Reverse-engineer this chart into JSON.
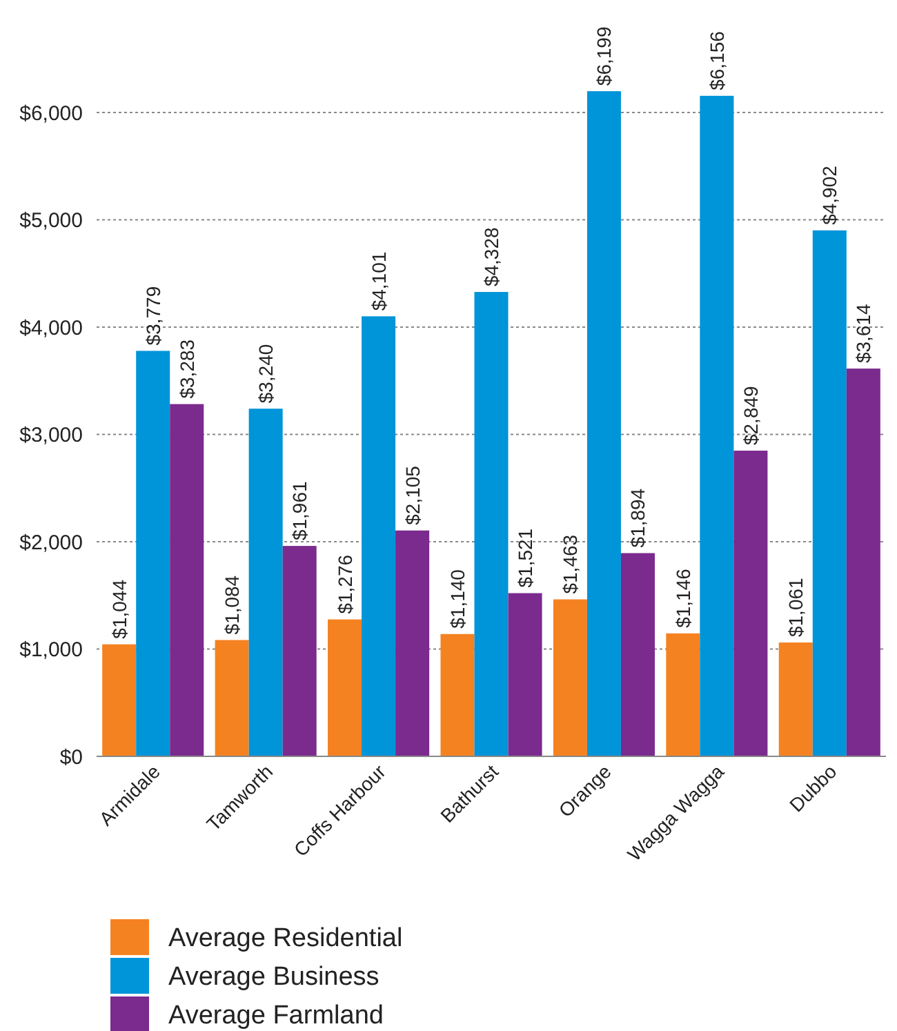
{
  "chart_data": {
    "type": "bar",
    "categories": [
      "Armidale",
      "Tamworth",
      "Coffs Harbour",
      "Bathurst",
      "Orange",
      "Wagga Wagga",
      "Dubbo"
    ],
    "series": [
      {
        "name": "Average Residential",
        "color": "#f58220",
        "values": [
          1044,
          1084,
          1276,
          1140,
          1463,
          1146,
          1061
        ],
        "value_labels": [
          "$1,044",
          "$1,084",
          "$1,276",
          "$1,140",
          "$1,463",
          "$1,146",
          "$1,061"
        ]
      },
      {
        "name": "Average Business",
        "color": "#0094d9",
        "values": [
          3779,
          3240,
          4101,
          4328,
          6199,
          6156,
          4902
        ],
        "value_labels": [
          "$3,779",
          "$3,240",
          "$4,101",
          "$4,328",
          "$6,199",
          "$6,156",
          "$4,902"
        ]
      },
      {
        "name": "Average Farmland",
        "color": "#7b2a8e",
        "values": [
          3283,
          1961,
          2105,
          1521,
          1894,
          2849,
          3614
        ],
        "value_labels": [
          "$3,283",
          "$1,961",
          "$2,105",
          "$1,521",
          "$1,894",
          "$2,849",
          "$3,614"
        ]
      }
    ],
    "ylim": [
      0,
      6200
    ],
    "yticks": [
      {
        "value": 0,
        "label": "$0"
      },
      {
        "value": 1000,
        "label": "$1,000"
      },
      {
        "value": 2000,
        "label": "$2,000"
      },
      {
        "value": 3000,
        "label": "$3,000"
      },
      {
        "value": 4000,
        "label": "$4,000"
      },
      {
        "value": 5000,
        "label": "$5,000"
      },
      {
        "value": 6000,
        "label": "$6,000"
      }
    ],
    "grid": "y",
    "legend": "bottom left"
  }
}
